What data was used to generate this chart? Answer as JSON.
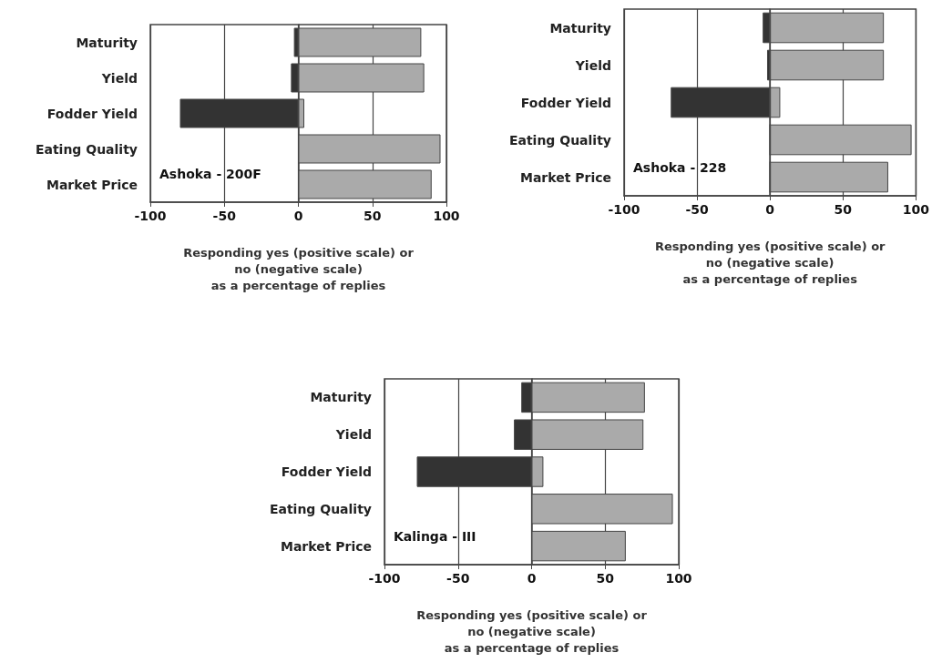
{
  "chart_data": [
    {
      "type": "bar",
      "orientation": "horizontal",
      "stacked": true,
      "categories": [
        "Maturity",
        "Yield",
        "Fodder Yield",
        "Eating Quality",
        "Market Price"
      ],
      "series": [
        {
          "color": "#333333",
          "values": [
            -3,
            -5,
            -80,
            0,
            0
          ]
        },
        {
          "color": "#aaaaaa",
          "values": [
            83,
            85,
            4,
            96,
            90
          ]
        }
      ],
      "xlim": [
        -100,
        100
      ],
      "xticks": [
        -100,
        -50,
        0,
        50,
        100
      ],
      "grid": "x",
      "xlabel": "Responding yes (positive scale) or\nno (negative scale)\nas a percentage of replies",
      "annotations": [
        "Ashoka - 200F"
      ]
    },
    {
      "type": "bar",
      "orientation": "horizontal",
      "stacked": true,
      "categories": [
        "Maturity",
        "Yield",
        "Fodder Yield",
        "Eating Quality",
        "Market Price"
      ],
      "series": [
        {
          "color": "#333333",
          "values": [
            -5,
            -2,
            -68,
            0,
            0
          ]
        },
        {
          "color": "#aaaaaa",
          "values": [
            78,
            78,
            7,
            97,
            81
          ]
        }
      ],
      "xlim": [
        -100,
        100
      ],
      "xticks": [
        -100,
        -50,
        0,
        50,
        100
      ],
      "grid": "x",
      "xlabel": "Responding yes (positive scale) or\nno (negative scale)\nas a percentage of replies",
      "annotations": [
        "Ashoka - 228"
      ]
    },
    {
      "type": "bar",
      "orientation": "horizontal",
      "stacked": true,
      "categories": [
        "Maturity",
        "Yield",
        "Fodder Yield",
        "Eating Quality",
        "Market Price"
      ],
      "series": [
        {
          "color": "#333333",
          "values": [
            -7,
            -12,
            -78,
            0,
            0
          ]
        },
        {
          "color": "#aaaaaa",
          "values": [
            77,
            76,
            8,
            96,
            64
          ]
        }
      ],
      "xlim": [
        -100,
        100
      ],
      "xticks": [
        -100,
        -50,
        0,
        50,
        100
      ],
      "grid": "x",
      "xlabel": "Responding yes (positive scale) or\nno (negative scale)\nas a percentage of replies",
      "annotations": [
        "Kalinga - III"
      ]
    }
  ]
}
